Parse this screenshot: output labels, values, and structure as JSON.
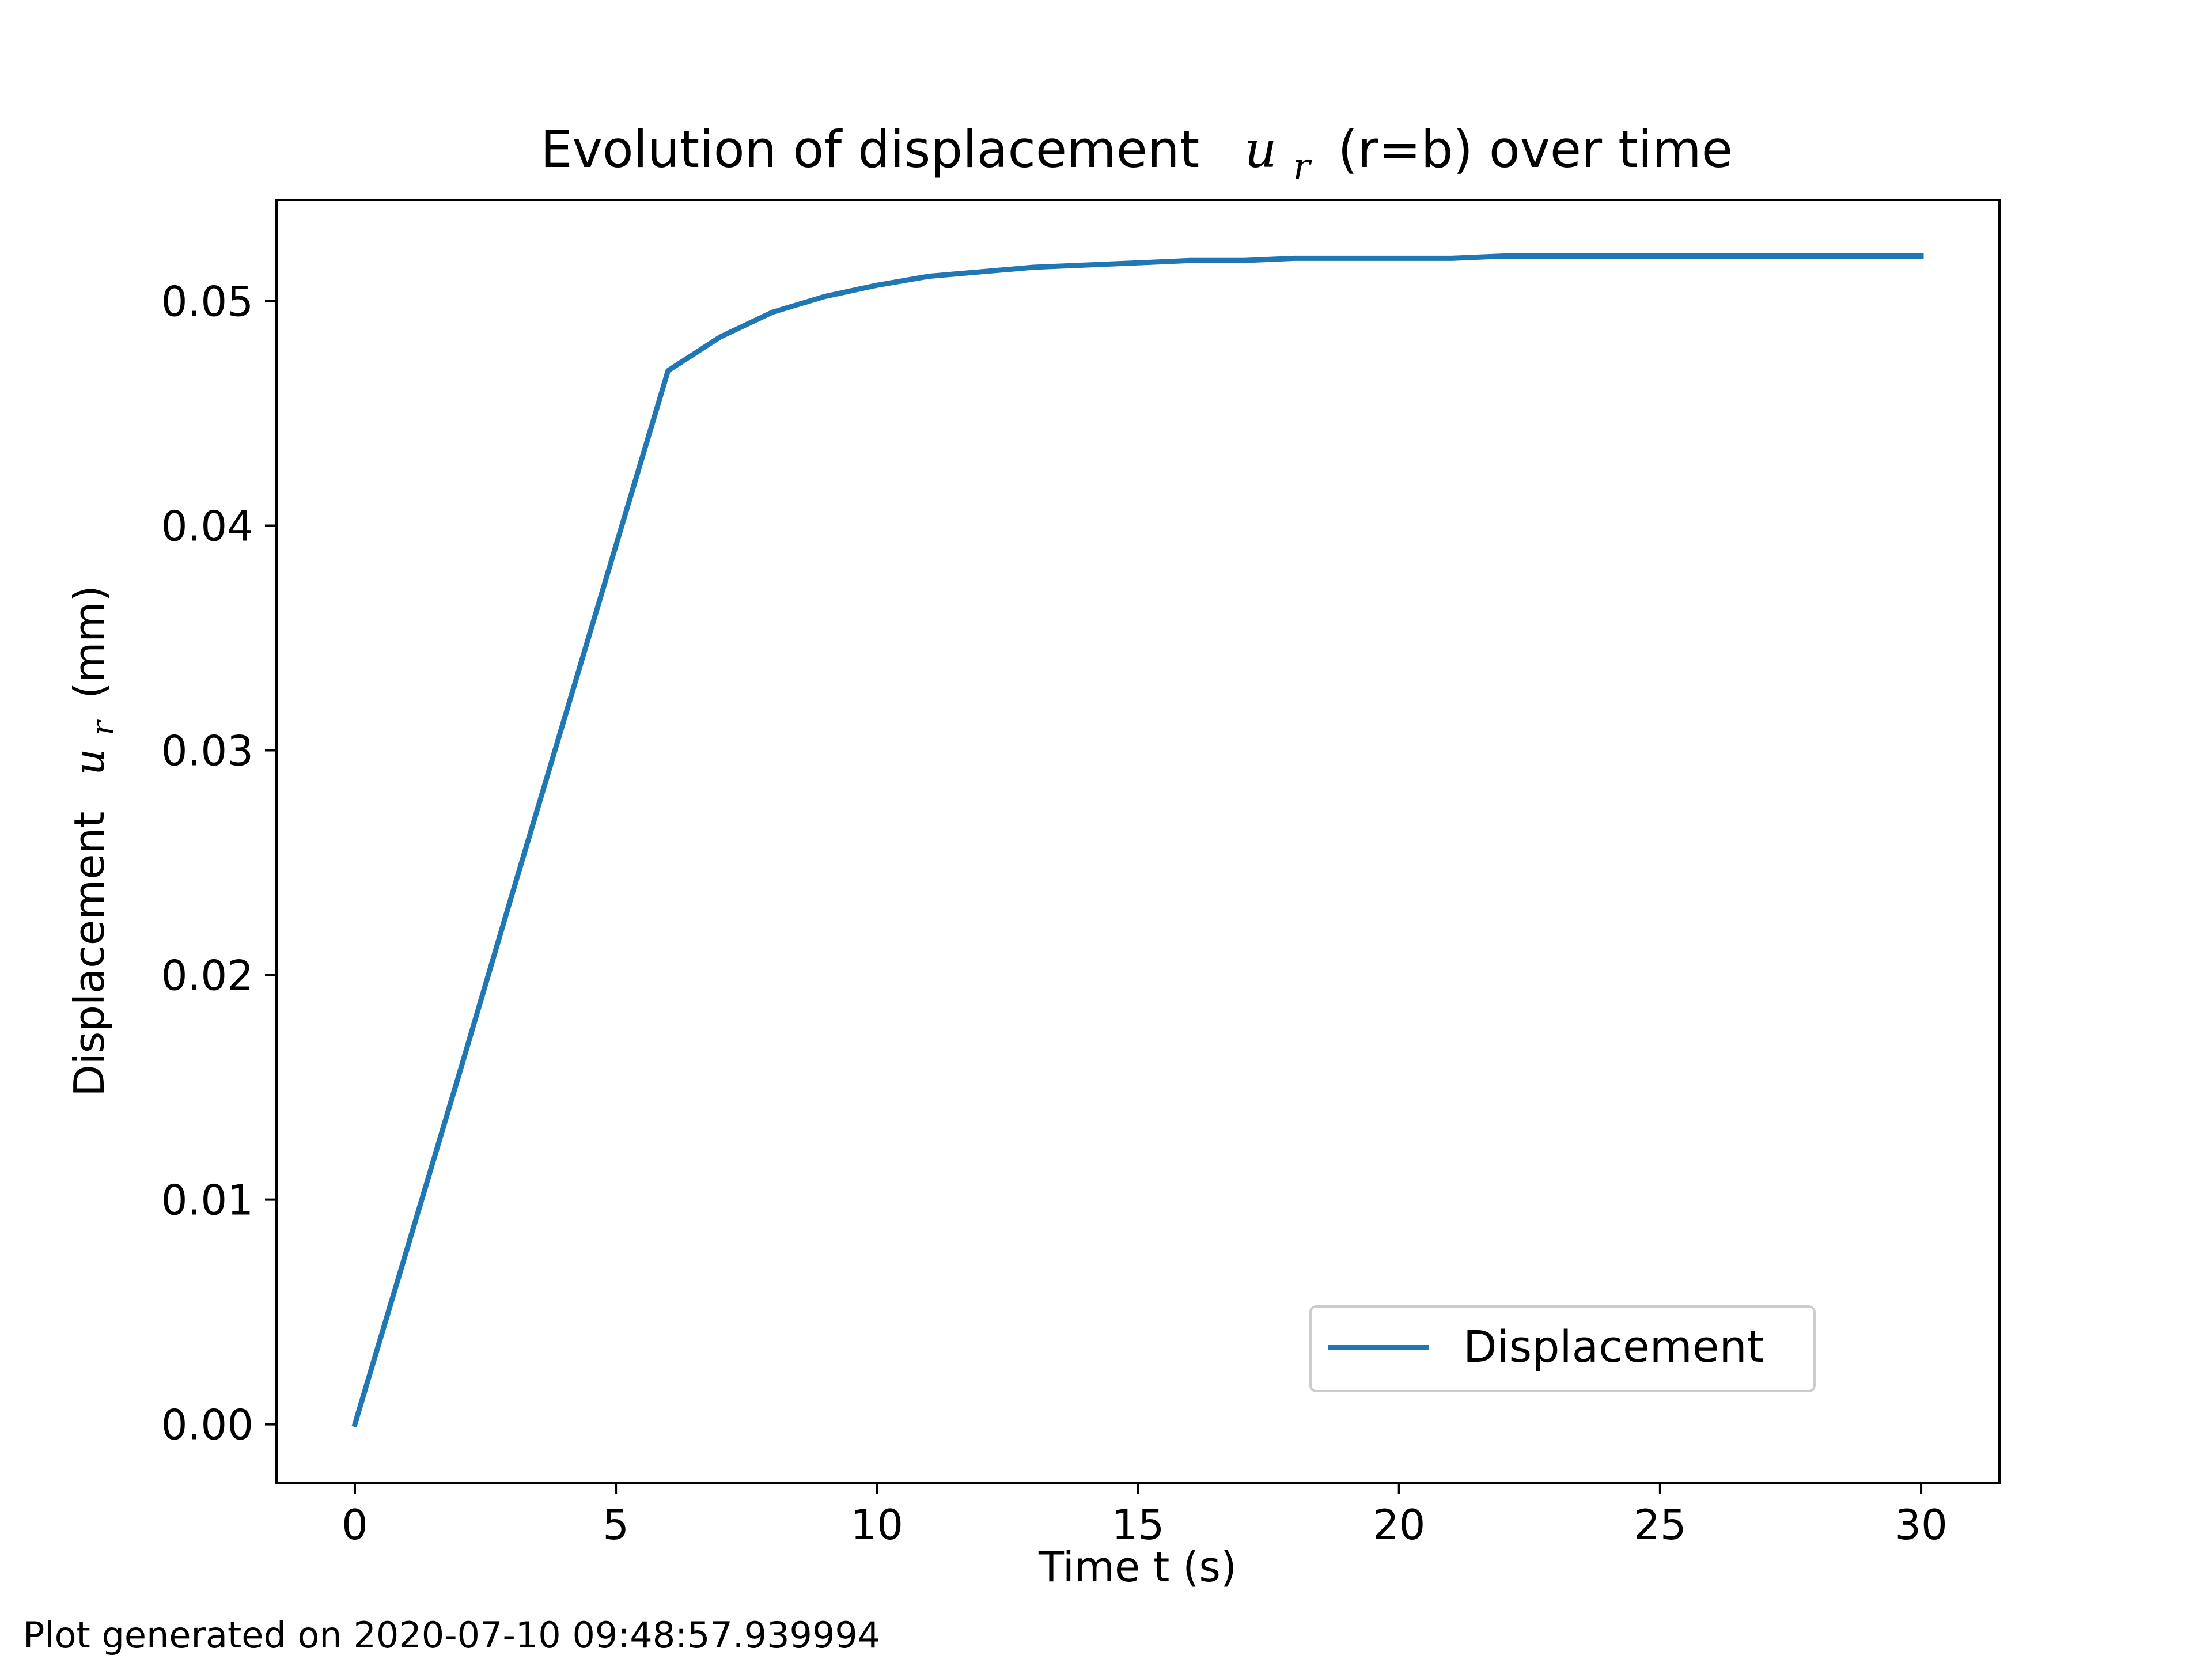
{
  "chart_data": {
    "type": "line",
    "title_prefix": "Evolution of displacement",
    "title_symbol": "u",
    "title_subscript": "r",
    "title_suffix": "(r=b) over time",
    "xlabel": "Time t (s)",
    "ylabel_prefix": "Displacement",
    "ylabel_symbol": "u",
    "ylabel_subscript": "r",
    "ylabel_suffix": "(mm)",
    "xlim": [
      -1.5,
      31.5
    ],
    "ylim": [
      -0.0026,
      0.0545
    ],
    "x_ticks": [
      0,
      5,
      10,
      15,
      20,
      25,
      30
    ],
    "x_tick_labels": [
      "0",
      "5",
      "10",
      "15",
      "20",
      "25",
      "30"
    ],
    "y_ticks": [
      0.0,
      0.01,
      0.02,
      0.03,
      0.04,
      0.05
    ],
    "y_tick_labels": [
      "0.00",
      "0.01",
      "0.02",
      "0.03",
      "0.04",
      "0.05"
    ],
    "grid": false,
    "legend_position": "lower-right",
    "series": [
      {
        "name": "Displacement",
        "color": "#1f77b4",
        "x": [
          0,
          1,
          2,
          3,
          4,
          5,
          6,
          7,
          8,
          9,
          10,
          11,
          12,
          13,
          14,
          15,
          16,
          17,
          18,
          19,
          20,
          21,
          22,
          23,
          24,
          25,
          26,
          27,
          28,
          29,
          30
        ],
        "y": [
          0.0,
          0.0078,
          0.0156,
          0.0235,
          0.0313,
          0.0391,
          0.0469,
          0.0484,
          0.0495,
          0.0502,
          0.0507,
          0.0511,
          0.0513,
          0.0515,
          0.0516,
          0.0517,
          0.0518,
          0.0518,
          0.0519,
          0.0519,
          0.0519,
          0.0519,
          0.052,
          0.052,
          0.052,
          0.052,
          0.052,
          0.052,
          0.052,
          0.052,
          0.052
        ]
      }
    ]
  },
  "footer": {
    "text": "Plot generated on 2020-07-10 09:48:57.939994"
  }
}
